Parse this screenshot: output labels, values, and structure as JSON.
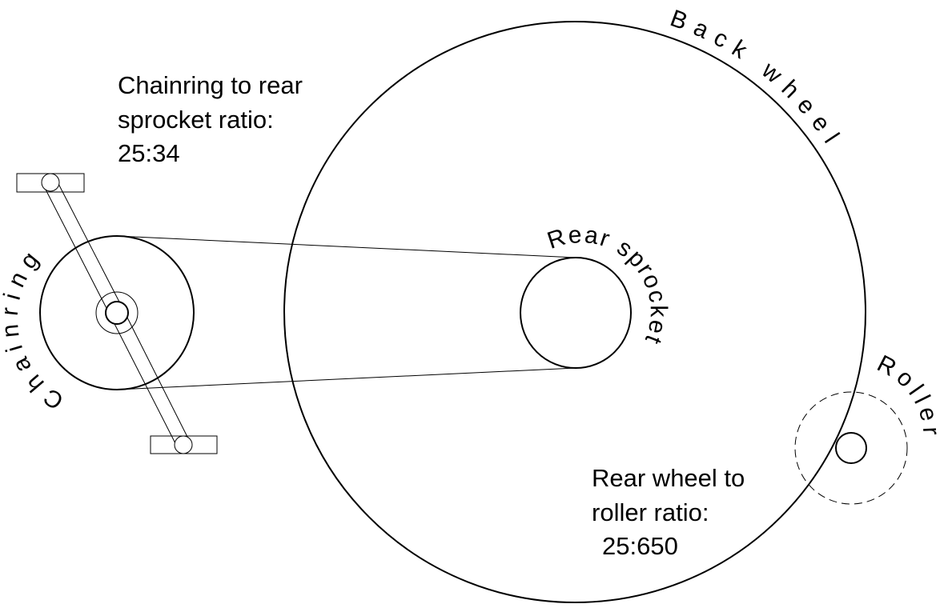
{
  "labels": {
    "back_wheel": "Back wheel",
    "chainring": "Chainring",
    "rear_sprocket": "Rear sprocket",
    "roller": "Roller"
  },
  "notes": [
    {
      "lines": [
        "Chainring to rear",
        "sprocket ratio:",
        "25:34"
      ]
    },
    {
      "lines": [
        "Rear wheel to",
        "roller ratio:",
        "25:650"
      ]
    }
  ]
}
